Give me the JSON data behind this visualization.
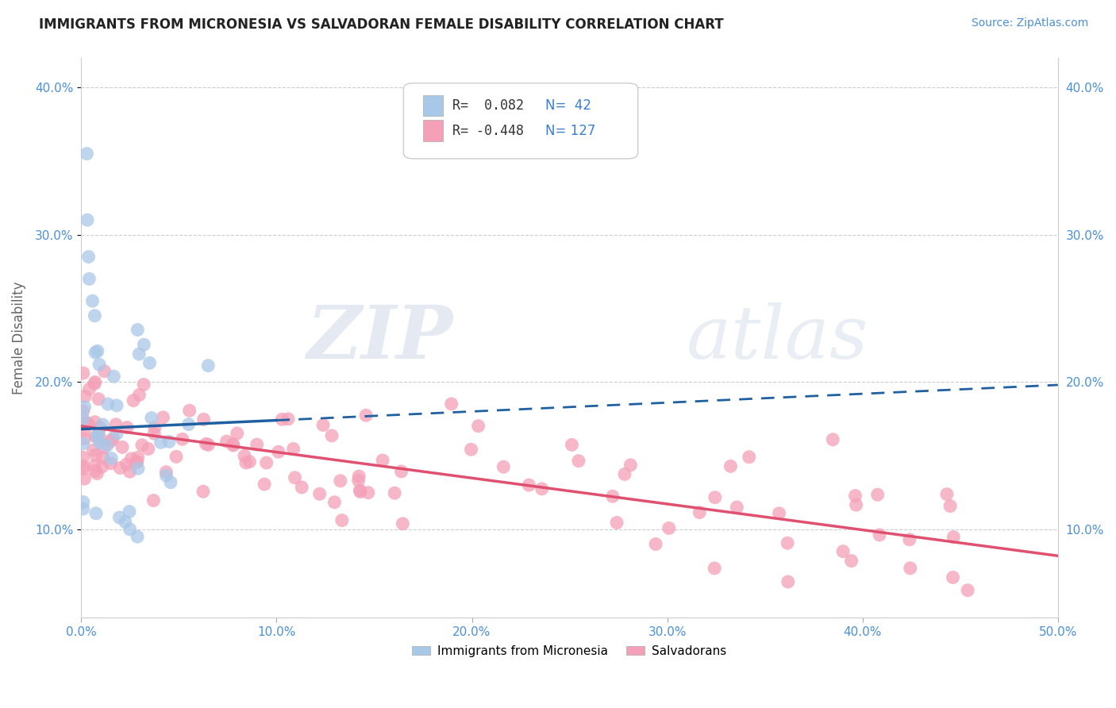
{
  "title": "IMMIGRANTS FROM MICRONESIA VS SALVADORAN FEMALE DISABILITY CORRELATION CHART",
  "source": "Source: ZipAtlas.com",
  "ylabel": "Female Disability",
  "xlim": [
    0.0,
    0.5
  ],
  "ylim": [
    0.04,
    0.42
  ],
  "xticks": [
    0.0,
    0.1,
    0.2,
    0.3,
    0.4,
    0.5
  ],
  "xtick_labels": [
    "0.0%",
    "10.0%",
    "20.0%",
    "30.0%",
    "40.0%",
    "50.0%"
  ],
  "yticks": [
    0.1,
    0.2,
    0.3,
    0.4
  ],
  "ytick_labels": [
    "10.0%",
    "20.0%",
    "30.0%",
    "40.0%"
  ],
  "legend_labels": [
    "Immigrants from Micronesia",
    "Salvadorans"
  ],
  "legend_r_values": [
    "0.082",
    "-0.448"
  ],
  "legend_n_values": [
    "42",
    "127"
  ],
  "blue_color": "#a8c8e8",
  "pink_color": "#f4a0b8",
  "blue_line_color": "#2060a0",
  "pink_line_color": "#e05070",
  "watermark_zip": "ZIP",
  "watermark_atlas": "atlas",
  "blue_line_solid_end": 0.1,
  "blue_line_y_start": 0.168,
  "blue_line_y_end": 0.195,
  "pink_line_y_start": 0.17,
  "pink_line_y_end": 0.082
}
